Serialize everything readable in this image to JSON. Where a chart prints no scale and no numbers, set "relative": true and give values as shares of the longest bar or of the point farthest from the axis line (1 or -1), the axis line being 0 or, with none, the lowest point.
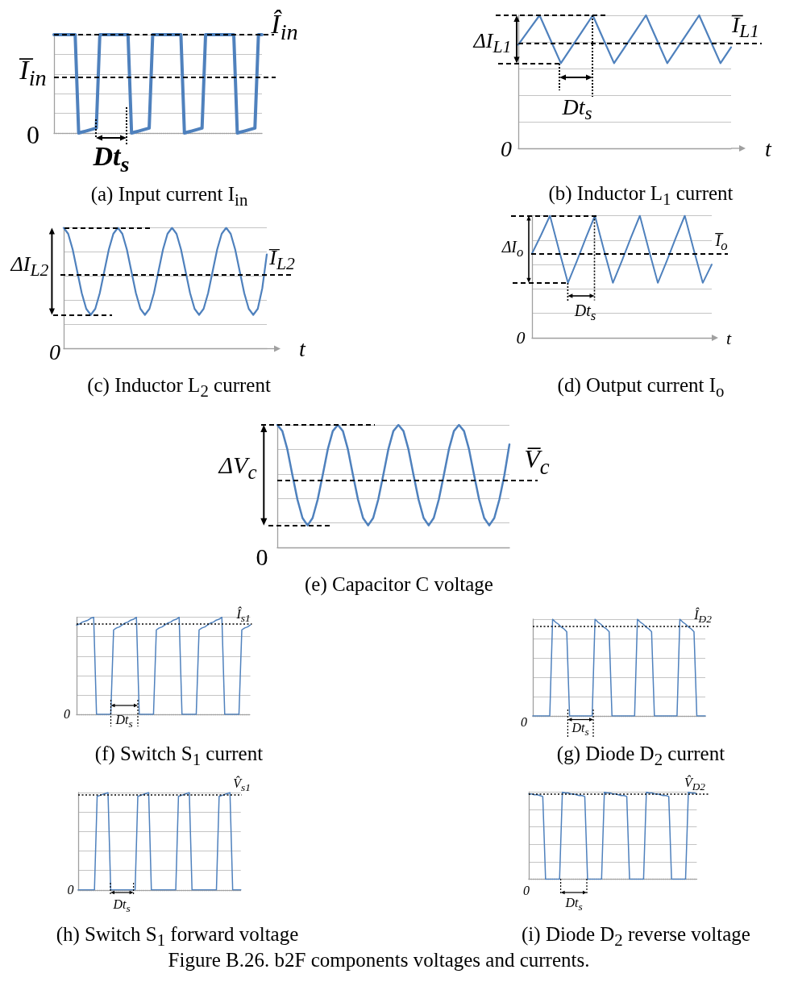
{
  "chart_data": [
    {
      "type": "line",
      "title": "(a) Input current I$_{in}$",
      "relative": true,
      "grid": "y",
      "marker": "none",
      "color": "#4f81bd",
      "categories": [
        null,
        null,
        null,
        null,
        null,
        null,
        null,
        null,
        null,
        null,
        null,
        null,
        null,
        null,
        null,
        null,
        null,
        null,
        null,
        null,
        null,
        null,
        null,
        null,
        null,
        null,
        null,
        null,
        null,
        null,
        null,
        null,
        null,
        null,
        null,
        null,
        null,
        null,
        null,
        null,
        null,
        null,
        null,
        null,
        null,
        null,
        null,
        null,
        null,
        null,
        null,
        null,
        null,
        null,
        null,
        null,
        null,
        null,
        null,
        null
      ],
      "values": [
        1,
        1,
        1,
        1,
        1,
        1,
        1,
        0,
        0.01,
        0.02,
        0.03,
        0.04,
        0.05,
        1,
        1,
        1,
        1,
        1,
        1,
        1,
        1,
        1,
        0,
        0.01,
        0.02,
        0.03,
        0.04,
        0.05,
        1,
        1,
        1,
        1,
        1,
        1,
        1,
        1,
        1,
        0,
        0.01,
        0.02,
        0.03,
        0.04,
        0.05,
        1,
        1,
        1,
        1,
        1,
        1,
        1,
        1,
        1,
        0,
        0.01,
        0.02,
        0.03,
        0.04,
        0.05,
        1,
        1
      ],
      "ref_lines": [
        {
          "axis": "y",
          "value": 1,
          "label": "Î$_{in}$",
          "line_style": "dashed"
        },
        {
          "axis": "y",
          "value": 0.57,
          "label": "I̅$_{in}$",
          "line_style": "dashed"
        }
      ],
      "annotations": [
        "0",
        "Dt$_{s}$"
      ]
    },
    {
      "type": "line",
      "title": "(b) Inductor L$_{1}$ current",
      "xlabel": "t",
      "relative": true,
      "grid": "y",
      "marker": "none",
      "color": "#4f81bd",
      "categories": [
        null,
        null,
        null,
        null,
        null,
        null,
        null,
        null,
        null,
        null,
        null,
        null,
        null,
        null,
        null,
        null,
        null,
        null,
        null,
        null,
        null
      ],
      "values": [
        0.78,
        0.89,
        1,
        0.82,
        0.64,
        0.76,
        0.88,
        1,
        0.82,
        0.64,
        0.76,
        0.88,
        1,
        0.82,
        0.64,
        0.76,
        0.88,
        1,
        0.82,
        0.64,
        0.76
      ],
      "ref_lines": [
        {
          "axis": "y",
          "value": 1,
          "line_style": "dashed"
        },
        {
          "axis": "y",
          "value": 0.64,
          "line_style": "dashed"
        },
        {
          "axis": "y",
          "value": 0.79,
          "label": "I̅$_{L1}$",
          "line_style": "dashed"
        }
      ],
      "annotations": [
        "0",
        "ΔI$_{L1}$",
        "Dt$_{s}$"
      ]
    },
    {
      "type": "line",
      "title": "(c) Inductor L$_{2}$ current",
      "xlabel": "t",
      "relative": true,
      "grid": "y",
      "marker": "none",
      "color": "#4f81bd",
      "categories": [
        null,
        null,
        null,
        null,
        null,
        null,
        null,
        null,
        null,
        null,
        null,
        null,
        null,
        null,
        null,
        null,
        null,
        null,
        null,
        null,
        null,
        null,
        null,
        null,
        null,
        null,
        null,
        null,
        null,
        null,
        null,
        null,
        null,
        null,
        null,
        null,
        null,
        null,
        null,
        null,
        null,
        null,
        null,
        null,
        null,
        null
      ],
      "values": [
        1,
        0.95,
        0.82,
        0.64,
        0.46,
        0.33,
        0.28,
        0.33,
        0.46,
        0.64,
        0.82,
        0.95,
        1,
        0.95,
        0.82,
        0.64,
        0.46,
        0.33,
        0.28,
        0.33,
        0.46,
        0.64,
        0.82,
        0.95,
        1,
        0.95,
        0.82,
        0.64,
        0.46,
        0.33,
        0.28,
        0.33,
        0.46,
        0.64,
        0.82,
        0.95,
        1,
        0.95,
        0.82,
        0.64,
        0.46,
        0.33,
        0.28,
        0.33,
        0.5,
        0.78
      ],
      "ref_lines": [
        {
          "axis": "y",
          "value": 1,
          "line_style": "dashed"
        },
        {
          "axis": "y",
          "value": 0.28,
          "line_style": "dashed"
        },
        {
          "axis": "y",
          "value": 0.61,
          "label": "I̅$_{L2}$",
          "line_style": "dashed"
        }
      ],
      "annotations": [
        "0",
        "ΔI$_{L2}$"
      ]
    },
    {
      "type": "line",
      "title": "(d) Output current I$_{o}$",
      "xlabel": "t",
      "relative": true,
      "grid": "y",
      "marker": "none",
      "color": "#4f81bd",
      "categories": [
        null,
        null,
        null,
        null,
        null,
        null,
        null,
        null,
        null,
        null,
        null,
        null,
        null,
        null,
        null,
        null,
        null,
        null,
        null,
        null,
        null
      ],
      "values": [
        0.69,
        0.84,
        1,
        0.72,
        0.45,
        0.63,
        0.82,
        1,
        0.72,
        0.45,
        0.63,
        0.82,
        1,
        0.72,
        0.45,
        0.63,
        0.82,
        1,
        0.72,
        0.45,
        0.6
      ],
      "ref_lines": [
        {
          "axis": "y",
          "value": 1,
          "line_style": "dashed"
        },
        {
          "axis": "y",
          "value": 0.45,
          "line_style": "dashed"
        },
        {
          "axis": "y",
          "value": 0.69,
          "label": "I̅$_{o}$",
          "line_style": "dashed"
        }
      ],
      "annotations": [
        "0",
        "ΔI$_{o}$",
        "Dt$_{s}$"
      ]
    },
    {
      "type": "line",
      "title": "(e) Capacitor C voltage",
      "relative": true,
      "grid": "y",
      "marker": "none",
      "color": "#4f81bd",
      "categories": [
        null,
        null,
        null,
        null,
        null,
        null,
        null,
        null,
        null,
        null,
        null,
        null,
        null,
        null,
        null,
        null,
        null,
        null,
        null,
        null,
        null,
        null,
        null,
        null,
        null,
        null,
        null,
        null,
        null,
        null,
        null,
        null,
        null,
        null,
        null,
        null,
        null,
        null,
        null,
        null,
        null,
        null,
        null,
        null,
        null,
        null,
        null
      ],
      "values": [
        1,
        0.95,
        0.8,
        0.59,
        0.39,
        0.24,
        0.18,
        0.24,
        0.39,
        0.59,
        0.8,
        0.95,
        1,
        0.95,
        0.8,
        0.59,
        0.39,
        0.24,
        0.18,
        0.24,
        0.39,
        0.59,
        0.8,
        0.95,
        1,
        0.95,
        0.8,
        0.59,
        0.39,
        0.24,
        0.18,
        0.24,
        0.39,
        0.59,
        0.8,
        0.95,
        1,
        0.95,
        0.8,
        0.59,
        0.39,
        0.24,
        0.18,
        0.24,
        0.39,
        0.59,
        0.84
      ],
      "ref_lines": [
        {
          "axis": "y",
          "value": 1,
          "line_style": "dashed"
        },
        {
          "axis": "y",
          "value": 0.18,
          "line_style": "dashed"
        },
        {
          "axis": "y",
          "value": 0.55,
          "label": "V̅$_{c}$",
          "line_style": "dashed"
        }
      ],
      "annotations": [
        "0",
        "ΔV$_{c}$"
      ]
    },
    {
      "type": "line",
      "title": "(f) Switch S$_{1}$ current",
      "relative": true,
      "grid": "y",
      "marker": "none",
      "color": "#4f81bd",
      "categories": [
        null,
        null,
        null,
        null,
        null,
        null,
        null,
        null,
        null,
        null,
        null,
        null,
        null,
        null,
        null,
        null,
        null,
        null,
        null,
        null,
        null,
        null,
        null,
        null,
        null,
        null,
        null,
        null,
        null,
        null,
        null,
        null,
        null,
        null,
        null,
        null,
        null,
        null,
        null,
        null,
        null,
        null,
        null,
        null,
        null,
        null,
        null,
        null,
        null,
        null,
        null,
        null,
        null,
        null,
        null,
        null,
        null,
        null,
        null,
        null,
        null,
        null
      ],
      "values": [
        0.92,
        0.93,
        0.95,
        0.96,
        0.97,
        0.99,
        1,
        0,
        0,
        0,
        0,
        0,
        0,
        0.87,
        0.89,
        0.9,
        0.92,
        0.94,
        0.95,
        0.97,
        0.98,
        1,
        0,
        0,
        0,
        0,
        0,
        0,
        0.87,
        0.89,
        0.9,
        0.92,
        0.94,
        0.95,
        0.97,
        0.98,
        1,
        0,
        0,
        0,
        0,
        0,
        0,
        0.87,
        0.89,
        0.9,
        0.92,
        0.94,
        0.95,
        0.97,
        0.98,
        1,
        0,
        0,
        0,
        0,
        0,
        0,
        0.87,
        0.89,
        0.9,
        0.92
      ],
      "ref_lines": [
        {
          "axis": "y",
          "value": 0.93,
          "label": "Î$_{s1}$",
          "line_style": "dotted"
        }
      ],
      "annotations": [
        "0",
        "Dt$_{s}$"
      ]
    },
    {
      "type": "line",
      "title": "(g) Diode D$_{2}$ current",
      "relative": true,
      "grid": "y",
      "marker": "none",
      "color": "#4f81bd",
      "categories": [
        null,
        null,
        null,
        null,
        null,
        null,
        null,
        null,
        null,
        null,
        null,
        null,
        null,
        null,
        null,
        null,
        null,
        null,
        null,
        null,
        null,
        null,
        null,
        null,
        null,
        null,
        null,
        null,
        null,
        null,
        null,
        null,
        null,
        null,
        null,
        null,
        null,
        null,
        null,
        null,
        null,
        null,
        null,
        null,
        null,
        null,
        null,
        null,
        null,
        null,
        null,
        null,
        null,
        null,
        null,
        null,
        null,
        null,
        null,
        null,
        null,
        null
      ],
      "values": [
        0,
        0,
        0,
        0,
        0,
        0,
        0,
        1,
        0.97,
        0.95,
        0.92,
        0.9,
        0.87,
        0,
        0,
        0,
        0,
        0,
        0,
        0,
        0,
        0,
        1,
        0.97,
        0.95,
        0.92,
        0.9,
        0.87,
        0,
        0,
        0,
        0,
        0,
        0,
        0,
        0,
        0,
        1,
        0.97,
        0.95,
        0.92,
        0.9,
        0.87,
        0,
        0,
        0,
        0,
        0,
        0,
        0,
        0,
        0,
        1,
        0.97,
        0.95,
        0.92,
        0.9,
        0.87,
        0,
        0,
        0,
        0
      ],
      "ref_lines": [
        {
          "axis": "y",
          "value": 0.93,
          "label": "Î$_{D2}$",
          "line_style": "dotted"
        }
      ],
      "annotations": [
        "0",
        "Dt$_{s}$"
      ]
    },
    {
      "type": "line",
      "title": "(h) Switch S$_{1}$ forward voltage",
      "relative": true,
      "grid": "y",
      "marker": "none",
      "color": "#4f81bd",
      "categories": [
        null,
        null,
        null,
        null,
        null,
        null,
        null,
        null,
        null,
        null,
        null,
        null,
        null,
        null,
        null,
        null,
        null,
        null,
        null,
        null,
        null,
        null,
        null,
        null,
        null,
        null,
        null,
        null,
        null,
        null,
        null,
        null,
        null,
        null,
        null,
        null,
        null,
        null,
        null,
        null,
        null,
        null,
        null,
        null,
        null,
        null,
        null,
        null,
        null,
        null,
        null,
        null,
        null,
        null,
        null,
        null,
        null,
        null,
        null,
        null,
        null
      ],
      "values": [
        0,
        0,
        0,
        0,
        0,
        0,
        0,
        0.96,
        0.97,
        0.98,
        0.99,
        1,
        0,
        0,
        0,
        0,
        0,
        0,
        0,
        0,
        0,
        0,
        0.96,
        0.97,
        0.98,
        0.99,
        1,
        0,
        0,
        0,
        0,
        0,
        0,
        0,
        0,
        0,
        0,
        0.96,
        0.97,
        0.98,
        0.99,
        1,
        0,
        0,
        0,
        0,
        0,
        0,
        0,
        0,
        0,
        0,
        0.96,
        0.97,
        0.98,
        0.99,
        1,
        0,
        0,
        0,
        0
      ],
      "ref_lines": [
        {
          "axis": "y",
          "value": 0.98,
          "label": "V̂$_{s1}$",
          "line_style": "dotted"
        }
      ],
      "annotations": [
        "0",
        "Dt$_{s}$"
      ]
    },
    {
      "type": "line",
      "title": "(i) Diode D$_{2}$ reverse voltage",
      "relative": true,
      "grid": "y",
      "marker": "none",
      "color": "#4f81bd",
      "categories": [
        null,
        null,
        null,
        null,
        null,
        null,
        null,
        null,
        null,
        null,
        null,
        null,
        null,
        null,
        null,
        null,
        null,
        null,
        null,
        null,
        null,
        null,
        null,
        null,
        null,
        null,
        null,
        null,
        null,
        null,
        null,
        null,
        null,
        null,
        null,
        null,
        null,
        null,
        null,
        null,
        null,
        null,
        null,
        null,
        null,
        null,
        null,
        null,
        null,
        null,
        null,
        null,
        null,
        null,
        null,
        null,
        null,
        null,
        null,
        null,
        null
      ],
      "values": [
        0.98,
        0.98,
        0.97,
        0.97,
        0.96,
        0.95,
        0,
        0,
        0,
        0,
        0,
        0,
        1,
        0.99,
        0.99,
        0.98,
        0.98,
        0.97,
        0.96,
        0.96,
        0.95,
        0,
        0,
        0,
        0,
        0,
        0,
        1,
        0.99,
        0.99,
        0.98,
        0.98,
        0.97,
        0.96,
        0.96,
        0.95,
        0,
        0,
        0,
        0,
        0,
        0,
        1,
        0.99,
        0.99,
        0.98,
        0.98,
        0.97,
        0.96,
        0.96,
        0.95,
        0,
        0,
        0,
        0,
        0,
        0,
        1,
        0.99,
        0.99,
        0.98
      ],
      "ref_lines": [
        {
          "axis": "y",
          "value": 0.98,
          "label": "V̂$_{D2}$",
          "line_style": "dotted"
        }
      ],
      "annotations": [
        "0",
        "Dt$_{s}$"
      ]
    },
    {
      "type": "other",
      "title": "Figure B.26. b2F components voltages and currents."
    }
  ]
}
